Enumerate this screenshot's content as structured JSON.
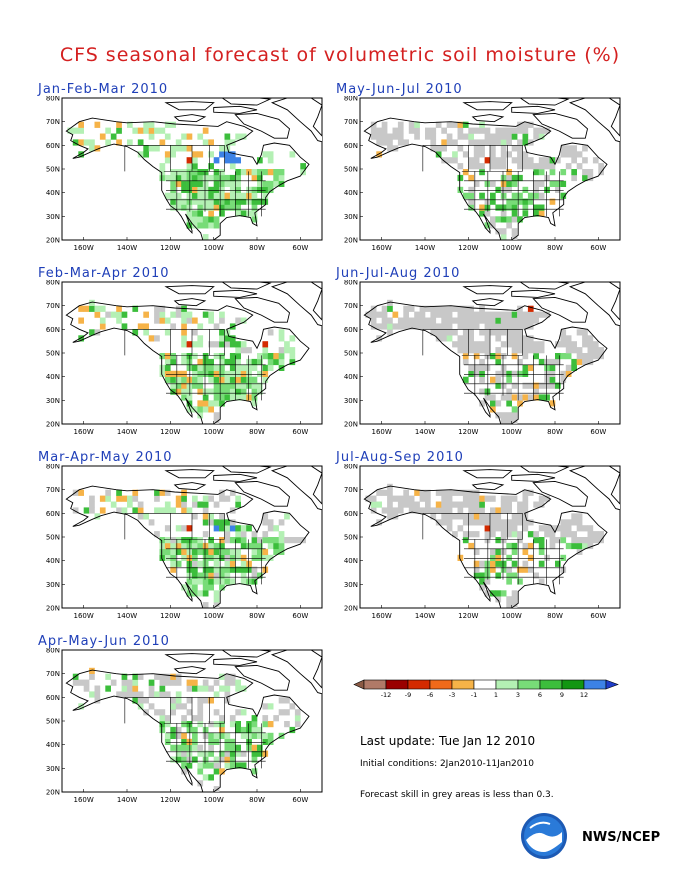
{
  "title": "CFS seasonal forecast of volumetric soil moisture (%)",
  "panels": [
    {
      "label": "Jan-Feb-Mar 2010",
      "grey_coverage": 0.0,
      "wet_level": 1.0
    },
    {
      "label": "May-Jun-Jul 2010",
      "grey_coverage": 0.55,
      "wet_level": 0.5
    },
    {
      "label": "Feb-Mar-Apr 2010",
      "grey_coverage": 0.1,
      "wet_level": 1.0
    },
    {
      "label": "Jun-Jul-Aug 2010",
      "grey_coverage": 0.8,
      "wet_level": 0.3
    },
    {
      "label": "Mar-Apr-May 2010",
      "grey_coverage": 0.15,
      "wet_level": 0.9
    },
    {
      "label": "Jul-Aug-Sep 2010",
      "grey_coverage": 0.7,
      "wet_level": 0.4
    },
    {
      "label": "Apr-May-Jun 2010",
      "grey_coverage": 0.3,
      "wet_level": 0.7
    }
  ],
  "map_axes": {
    "lat_labels": [
      "80N",
      "70N",
      "60N",
      "50N",
      "40N",
      "30N",
      "20N"
    ],
    "lon_labels": [
      "160W",
      "140W",
      "120W",
      "100W",
      "80W",
      "60W"
    ]
  },
  "legend": {
    "ticks": [
      "-12",
      "-9",
      "-6",
      "-3",
      "-1",
      "1",
      "3",
      "6",
      "9",
      "12"
    ],
    "colors": [
      "#8b5a44",
      "#b07a68",
      "#9a0000",
      "#d42a00",
      "#f06a1a",
      "#f6b348",
      "#ffffff",
      "#b4f0b4",
      "#78dc78",
      "#3cbe3c",
      "#129612",
      "#3c82e6",
      "#1e3cc8"
    ]
  },
  "last_update": "Last update: Tue Jan 12 2010",
  "initial_conditions": "Initial conditions: 2Jan2010-11Jan2010",
  "skill_note": "Forecast skill in grey areas is less than 0.3.",
  "agency": "NWS/NCEP",
  "colors": {
    "title": "#d42020",
    "panel_title": "#1f3fb8",
    "grey": "#c8c8c8",
    "green_light": "#b4f0b4",
    "green_mid": "#78dc78",
    "green_dark": "#3cbe3c",
    "orange": "#f6b348",
    "red": "#d42a00",
    "blue": "#3c82e6"
  }
}
